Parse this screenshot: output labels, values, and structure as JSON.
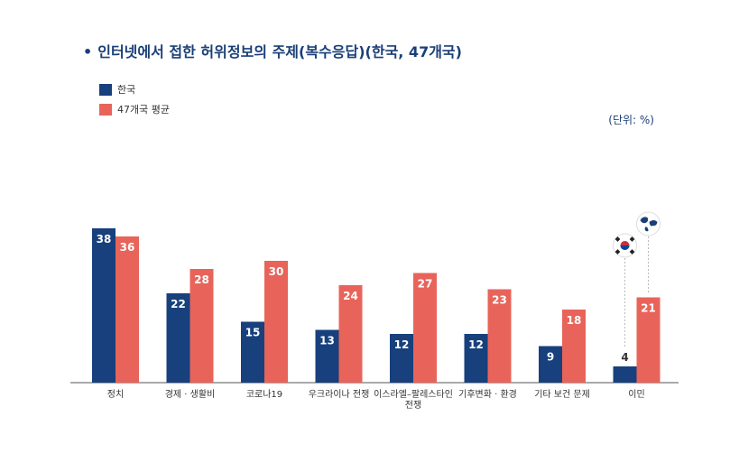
{
  "title": "인터넷에서 접한 허위정보의 주제(복수응답)(한국, 47개국)",
  "title_bullet": "•",
  "unit_label": "(단위: %)",
  "colors": {
    "korea": "#17407c",
    "average": "#e8645a",
    "title": "#1a3f78",
    "axis": "#555555"
  },
  "icons": [
    "korea-flag-icon",
    "globe-icon"
  ],
  "chart_data": {
    "type": "bar",
    "title": "인터넷에서 접한 허위정보의 주제(복수응답)(한국, 47개국)",
    "categories": [
      "정치",
      "경제 · 생활비",
      "코로나19",
      "우크라이나 전쟁",
      "이스라엘-팔레스타인 전쟁",
      "기후변화 · 환경",
      "기타 보건 문제",
      "이민"
    ],
    "category_lines": [
      [
        "정치"
      ],
      [
        "경제 · 생활비"
      ],
      [
        "코로나19"
      ],
      [
        "우크라이나 전쟁"
      ],
      [
        "이스라엘–팔레스타인",
        "전쟁"
      ],
      [
        "기후변화 · 환경"
      ],
      [
        "기타 보건 문제"
      ],
      [
        "이민"
      ]
    ],
    "series": [
      {
        "name": "한국",
        "values": [
          38,
          22,
          15,
          13,
          12,
          12,
          9,
          4
        ]
      },
      {
        "name": "47개국 평균",
        "values": [
          36,
          28,
          30,
          24,
          27,
          23,
          18,
          21
        ]
      }
    ],
    "ylim": [
      0,
      40
    ],
    "xlabel": "",
    "ylabel": "",
    "grid": false,
    "legend_position": "top-left",
    "unit": "%"
  }
}
